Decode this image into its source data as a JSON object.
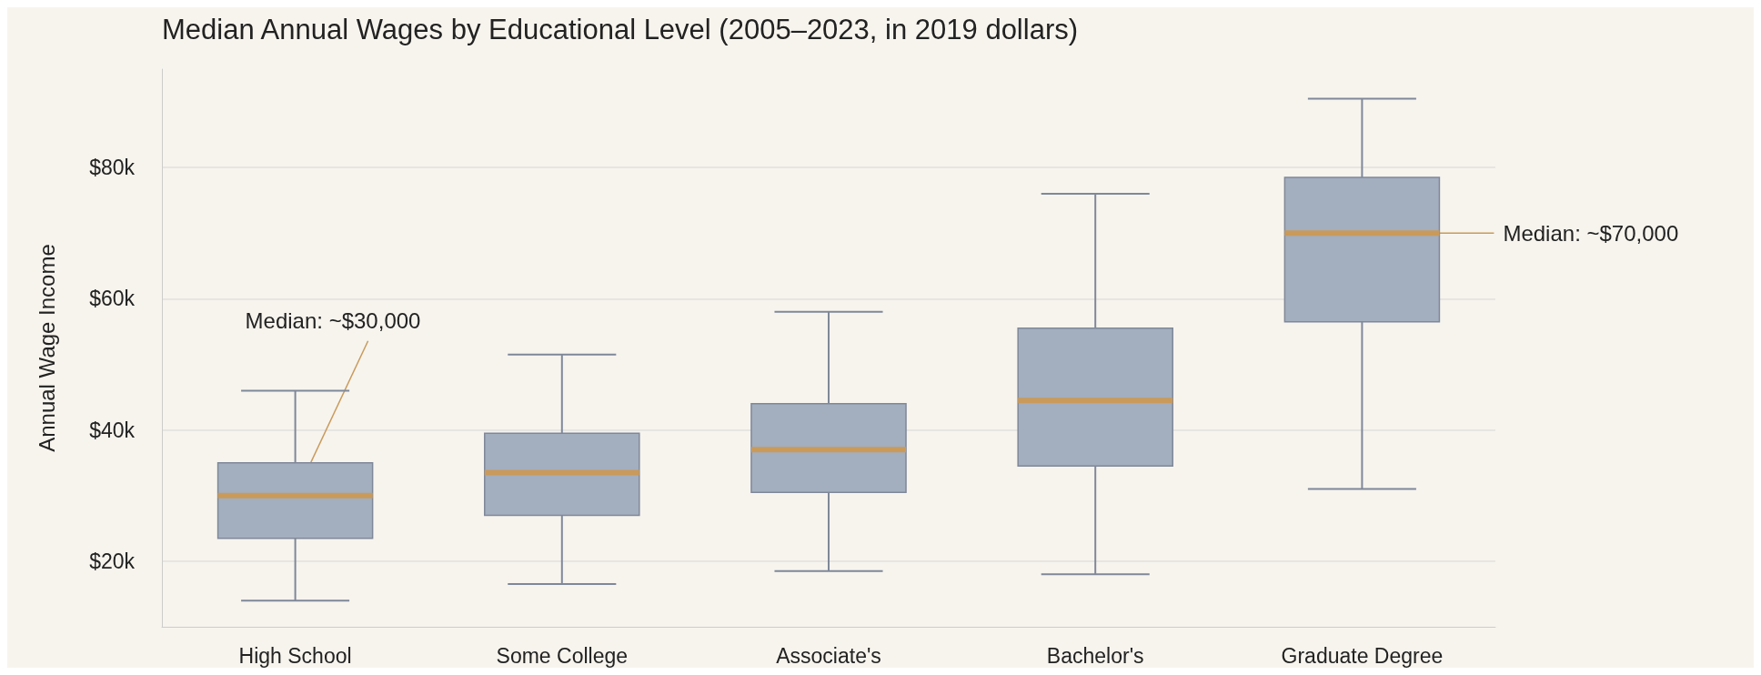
{
  "chart_data": {
    "type": "box",
    "title": "Median Annual Wages by Educational Level (2005–2023, in 2019 dollars)",
    "ylabel": "Annual Wage Income",
    "categories": [
      "High School",
      "Some College",
      "Associate's",
      "Bachelor's",
      "Graduate Degree"
    ],
    "series": [
      {
        "color": "#a3aebf",
        "boxes": [
          {
            "low": 14000,
            "q1": 23500,
            "median": 30000,
            "q3": 35000,
            "high": 46000
          },
          {
            "low": 16500,
            "q1": 27000,
            "median": 33500,
            "q3": 39500,
            "high": 51500
          },
          {
            "low": 18500,
            "q1": 30500,
            "median": 37000,
            "q3": 44000,
            "high": 58000
          },
          {
            "low": 18000,
            "q1": 34500,
            "median": 44500,
            "q3": 55500,
            "high": 76000
          },
          {
            "low": 31000,
            "q1": 56500,
            "median": 70000,
            "q3": 78500,
            "high": 90500
          }
        ]
      }
    ],
    "ylim": [
      10000,
      95000
    ],
    "yticks": [
      {
        "value": 20000,
        "label": "$20k"
      },
      {
        "value": 40000,
        "label": "$40k"
      },
      {
        "value": 60000,
        "label": "$60k"
      },
      {
        "value": 80000,
        "label": "$80k"
      }
    ],
    "grid": "y",
    "annotations": [
      {
        "text": "Median: ~$30,000",
        "x": "High School",
        "y": 30000
      },
      {
        "text": "Median: ~$70,000",
        "x": "Graduate Degree",
        "y": 70000
      }
    ]
  }
}
